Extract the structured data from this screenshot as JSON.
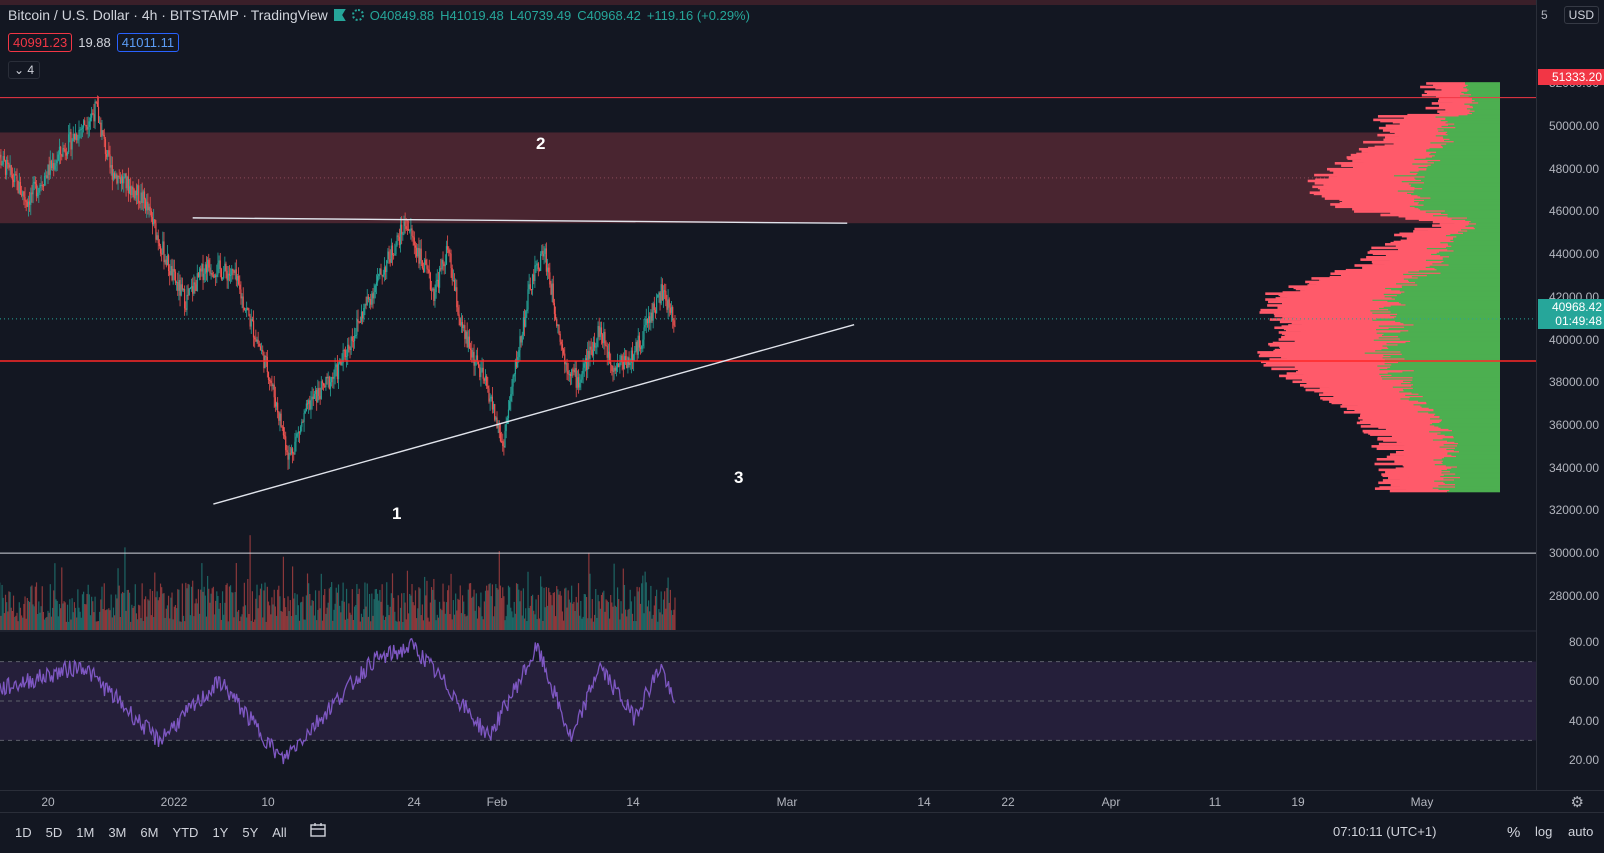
{
  "header": {
    "symbol": "Bitcoin / U.S. Dollar · 4h · BITSTAMP · TradingView",
    "open": "O40849.88",
    "high": "H41019.48",
    "low": "L40739.49",
    "close": "C40968.42",
    "change": "+119.16 (+0.29%)",
    "sell_price": "40991.23",
    "spread": "19.88",
    "buy_price": "41011.11",
    "indicators_count": "4"
  },
  "price_axis": {
    "currency": "USD",
    "top_label": "5",
    "ticks": [
      "52000.00",
      "50000.00",
      "48000.00",
      "46000.00",
      "44000.00",
      "42000.00",
      "40000.00",
      "38000.00",
      "36000.00",
      "34000.00",
      "32000.00",
      "30000.00",
      "28000.00"
    ],
    "resistance_label": "51333.20",
    "last_price_label": "40968.42",
    "countdown_label": "01:49:48"
  },
  "rsi_axis": {
    "ticks": [
      "80.00",
      "60.00",
      "40.00",
      "20.00"
    ]
  },
  "time_axis": {
    "ticks": [
      "20",
      "2022",
      "10",
      "24",
      "Feb",
      "14",
      "Mar",
      "14",
      "22",
      "Apr",
      "11",
      "19",
      "May"
    ]
  },
  "annotations": {
    "n1": "1",
    "n2": "2",
    "n3": "3"
  },
  "bottom_bar": {
    "ranges": [
      "1D",
      "5D",
      "1M",
      "3M",
      "6M",
      "YTD",
      "1Y",
      "5Y",
      "All"
    ],
    "clock": "07:10:11 (UTC+1)",
    "percent": "%",
    "log": "log",
    "auto": "auto"
  },
  "colors": {
    "up": "#26a69a",
    "down": "#ef5350",
    "zone": "#5c2b36",
    "volume_profile_down": "#ff5a6a",
    "volume_profile_up": "#4caf50",
    "rsi_line": "#7e57c2",
    "rsi_band": "#251f3a"
  },
  "chart_data": {
    "type": "candlestick",
    "symbol": "BTCUSD",
    "timeframe": "4h",
    "price_range": [
      26400,
      53000
    ],
    "rsi_range": [
      15,
      85
    ],
    "levels": {
      "resistance": 51333.2,
      "zone_top": 49700,
      "zone_bottom": 45450,
      "support": 39000,
      "lower_line": 30000
    },
    "close_path": [
      {
        "t": "2021-12-12",
        "p": 49000
      },
      {
        "t": "2021-12-17",
        "p": 46500
      },
      {
        "t": "2021-12-22",
        "p": 48800
      },
      {
        "t": "2021-12-27",
        "p": 50800
      },
      {
        "t": "2021-12-29",
        "p": 48000
      },
      {
        "t": "2022-01-03",
        "p": 46500
      },
      {
        "t": "2022-01-07",
        "p": 43000
      },
      {
        "t": "2022-01-09",
        "p": 41800
      },
      {
        "t": "2022-01-12",
        "p": 43500
      },
      {
        "t": "2022-01-16",
        "p": 43000
      },
      {
        "t": "2022-01-21",
        "p": 38500
      },
      {
        "t": "2022-01-24",
        "p": 34500
      },
      {
        "t": "2022-01-27",
        "p": 37000
      },
      {
        "t": "2022-01-31",
        "p": 38500
      },
      {
        "t": "2022-02-04",
        "p": 41500
      },
      {
        "t": "2022-02-10",
        "p": 45500
      },
      {
        "t": "2022-02-14",
        "p": 42200
      },
      {
        "t": "2022-02-16",
        "p": 44200
      },
      {
        "t": "2022-02-18",
        "p": 40500
      },
      {
        "t": "2022-02-22",
        "p": 37500
      },
      {
        "t": "2022-02-24",
        "p": 35000
      },
      {
        "t": "2022-02-26",
        "p": 39000
      },
      {
        "t": "2022-02-28",
        "p": 42500
      },
      {
        "t": "2022-03-02",
        "p": 44200
      },
      {
        "t": "2022-03-05",
        "p": 39000
      },
      {
        "t": "2022-03-07",
        "p": 38000
      },
      {
        "t": "2022-03-10",
        "p": 40500
      },
      {
        "t": "2022-03-12",
        "p": 38800
      },
      {
        "t": "2022-03-15",
        "p": 39200
      },
      {
        "t": "2022-03-17",
        "p": 40800
      },
      {
        "t": "2022-03-19",
        "p": 42200
      },
      {
        "t": "2022-03-21",
        "p": 40968
      }
    ],
    "rsi_path": [
      {
        "t": "2021-12-12",
        "v": 55
      },
      {
        "t": "2021-12-25",
        "v": 68
      },
      {
        "t": "2022-01-05",
        "v": 30
      },
      {
        "t": "2022-01-14",
        "v": 60
      },
      {
        "t": "2022-01-23",
        "v": 20
      },
      {
        "t": "2022-02-05",
        "v": 70
      },
      {
        "t": "2022-02-11",
        "v": 78
      },
      {
        "t": "2022-02-22",
        "v": 32
      },
      {
        "t": "2022-03-01",
        "v": 77
      },
      {
        "t": "2022-03-06",
        "v": 30
      },
      {
        "t": "2022-03-10",
        "v": 68
      },
      {
        "t": "2022-03-15",
        "v": 42
      },
      {
        "t": "2022-03-19",
        "v": 68
      },
      {
        "t": "2022-03-21",
        "v": 46
      }
    ],
    "trend_lines": [
      {
        "from": {
          "t": "2022-01-10",
          "p": 45700
        },
        "to": {
          "t": "2022-04-15",
          "p": 45450
        }
      },
      {
        "from": {
          "t": "2022-01-13",
          "p": 32300
        },
        "to": {
          "t": "2022-04-16",
          "p": 40700
        }
      }
    ]
  }
}
